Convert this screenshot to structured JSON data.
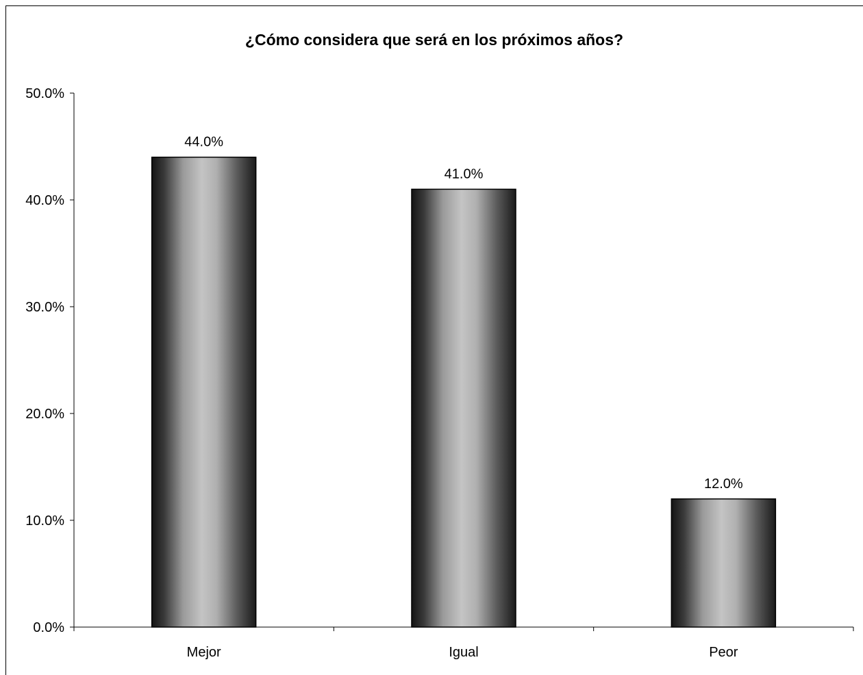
{
  "chart_data": {
    "type": "bar",
    "title": "¿Cómo considera que será en los próximos años?",
    "categories": [
      "Mejor",
      "Igual",
      "Peor"
    ],
    "values": [
      44.0,
      41.0,
      12.0
    ],
    "data_labels": [
      "44.0%",
      "41.0%",
      "12.0%"
    ],
    "ylim": [
      0,
      50
    ],
    "yticks": [
      0,
      10,
      20,
      30,
      40,
      50
    ],
    "ytick_labels": [
      "0.0%",
      "10.0%",
      "20.0%",
      "30.0%",
      "40.0%",
      "50.0%"
    ],
    "xlabel": "",
    "ylabel": "",
    "grid": false,
    "legend": "none",
    "bar_style": "metallic gray gradient",
    "colors": {
      "bar_dark": "#1a1a1a",
      "bar_light": "#bdbdbd",
      "axis": "#000000",
      "background": "#ffffff"
    }
  }
}
